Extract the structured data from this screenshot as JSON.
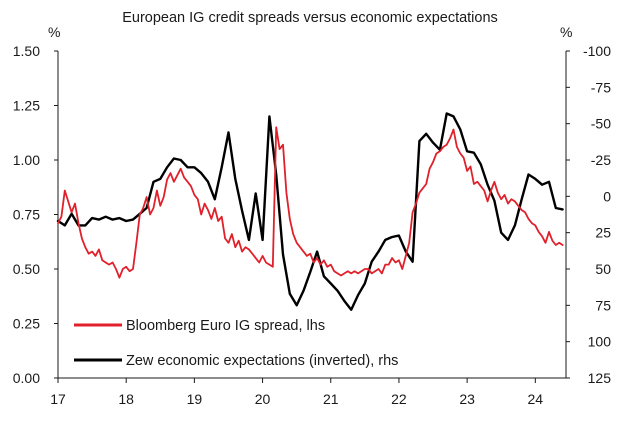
{
  "chart_data": {
    "type": "line",
    "title": "European IG credit spreads versus economic expectations",
    "left_axis": {
      "unit_label": "%",
      "range": [
        0,
        1.5
      ],
      "ticks": [
        "0.00",
        "0.25",
        "0.50",
        "0.75",
        "1.00",
        "1.25",
        "1.50"
      ],
      "tick_values": [
        0,
        0.25,
        0.5,
        0.75,
        1.0,
        1.25,
        1.5
      ]
    },
    "right_axis": {
      "unit_label": "%",
      "inverted": true,
      "range": [
        125,
        -100
      ],
      "ticks": [
        "125",
        "100",
        "75",
        "50",
        "25",
        "0",
        "-25",
        "-50",
        "-75",
        "-100"
      ],
      "tick_values": [
        125,
        100,
        75,
        50,
        25,
        0,
        -25,
        -50,
        -75,
        -100
      ]
    },
    "x_axis": {
      "range": [
        17,
        24.45
      ],
      "ticks": [
        "17",
        "18",
        "19",
        "20",
        "21",
        "22",
        "23",
        "24"
      ],
      "tick_values": [
        17,
        18,
        19,
        20,
        21,
        22,
        23,
        24
      ]
    },
    "grid": false,
    "legend_position": "bottom-left",
    "series": [
      {
        "name": "Bloomberg Euro IG spread, lhs",
        "axis": "left",
        "color": "#e0202a",
        "x": [
          17.0,
          17.05,
          17.1,
          17.15,
          17.2,
          17.25,
          17.3,
          17.35,
          17.4,
          17.45,
          17.5,
          17.55,
          17.6,
          17.65,
          17.7,
          17.75,
          17.8,
          17.85,
          17.9,
          17.95,
          18.0,
          18.05,
          18.1,
          18.15,
          18.2,
          18.25,
          18.3,
          18.35,
          18.4,
          18.45,
          18.5,
          18.55,
          18.6,
          18.65,
          18.7,
          18.75,
          18.8,
          18.85,
          18.9,
          18.95,
          19.0,
          19.05,
          19.1,
          19.15,
          19.2,
          19.25,
          19.3,
          19.35,
          19.4,
          19.45,
          19.5,
          19.55,
          19.6,
          19.65,
          19.7,
          19.75,
          19.8,
          19.85,
          19.9,
          19.95,
          20.0,
          20.05,
          20.1,
          20.15,
          20.2,
          20.25,
          20.3,
          20.35,
          20.4,
          20.45,
          20.5,
          20.55,
          20.6,
          20.65,
          20.7,
          20.75,
          20.8,
          20.85,
          20.9,
          20.95,
          21.0,
          21.05,
          21.1,
          21.15,
          21.2,
          21.25,
          21.3,
          21.35,
          21.4,
          21.45,
          21.5,
          21.55,
          21.6,
          21.65,
          21.7,
          21.75,
          21.8,
          21.85,
          21.9,
          21.95,
          22.0,
          22.05,
          22.1,
          22.15,
          22.2,
          22.25,
          22.3,
          22.35,
          22.4,
          22.45,
          22.5,
          22.55,
          22.6,
          22.65,
          22.7,
          22.75,
          22.8,
          22.85,
          22.9,
          22.95,
          23.0,
          23.05,
          23.1,
          23.15,
          23.2,
          23.25,
          23.3,
          23.35,
          23.4,
          23.45,
          23.5,
          23.55,
          23.6,
          23.65,
          23.7,
          23.75,
          23.8,
          23.85,
          23.9,
          23.95,
          24.0,
          24.05,
          24.1,
          24.15,
          24.2,
          24.25,
          24.3,
          24.35,
          24.4
        ],
        "values": [
          0.71,
          0.74,
          0.86,
          0.81,
          0.76,
          0.8,
          0.71,
          0.64,
          0.6,
          0.57,
          0.58,
          0.56,
          0.59,
          0.54,
          0.53,
          0.52,
          0.53,
          0.5,
          0.46,
          0.5,
          0.51,
          0.49,
          0.5,
          0.62,
          0.75,
          0.78,
          0.83,
          0.75,
          0.78,
          0.86,
          0.79,
          0.83,
          0.91,
          0.94,
          0.9,
          0.93,
          0.96,
          0.92,
          0.9,
          0.88,
          0.84,
          0.82,
          0.75,
          0.8,
          0.77,
          0.73,
          0.78,
          0.72,
          0.74,
          0.64,
          0.62,
          0.66,
          0.6,
          0.63,
          0.58,
          0.6,
          0.59,
          0.57,
          0.55,
          0.53,
          0.56,
          0.53,
          0.52,
          0.51,
          1.15,
          1.05,
          1.07,
          0.85,
          0.73,
          0.66,
          0.62,
          0.6,
          0.58,
          0.56,
          0.57,
          0.53,
          0.55,
          0.52,
          0.54,
          0.51,
          0.52,
          0.49,
          0.48,
          0.47,
          0.48,
          0.49,
          0.48,
          0.49,
          0.48,
          0.49,
          0.5,
          0.5,
          0.48,
          0.49,
          0.5,
          0.48,
          0.52,
          0.52,
          0.55,
          0.53,
          0.54,
          0.5,
          0.56,
          0.62,
          0.76,
          0.8,
          0.85,
          0.87,
          0.89,
          0.96,
          0.99,
          1.03,
          1.04,
          1.06,
          1.07,
          1.1,
          1.14,
          1.06,
          1.03,
          1.01,
          0.95,
          0.97,
          0.89,
          0.9,
          0.88,
          0.86,
          0.81,
          0.86,
          0.9,
          0.85,
          0.82,
          0.84,
          0.8,
          0.82,
          0.81,
          0.79,
          0.77,
          0.76,
          0.73,
          0.71,
          0.7,
          0.67,
          0.65,
          0.62,
          0.67,
          0.63,
          0.61,
          0.62,
          0.61
        ]
      },
      {
        "name": "Zew economic expectations (inverted), rhs",
        "axis": "right",
        "color": "#000000",
        "x": [
          17.0,
          17.1,
          17.2,
          17.3,
          17.4,
          17.5,
          17.6,
          17.7,
          17.8,
          17.9,
          18.0,
          18.1,
          18.2,
          18.3,
          18.4,
          18.5,
          18.6,
          18.7,
          18.8,
          18.9,
          19.0,
          19.1,
          19.2,
          19.3,
          19.4,
          19.5,
          19.6,
          19.7,
          19.8,
          19.9,
          20.0,
          20.1,
          20.2,
          20.3,
          20.4,
          20.5,
          20.6,
          20.7,
          20.8,
          20.9,
          21.0,
          21.1,
          21.2,
          21.3,
          21.4,
          21.5,
          21.6,
          21.7,
          21.8,
          21.9,
          22.0,
          22.1,
          22.2,
          22.3,
          22.4,
          22.5,
          22.6,
          22.7,
          22.8,
          22.9,
          23.0,
          23.1,
          23.2,
          23.3,
          23.4,
          23.5,
          23.6,
          23.7,
          23.8,
          23.9,
          24.0,
          24.1,
          24.2,
          24.3,
          24.4
        ],
        "values": [
          17,
          20,
          12,
          20,
          20,
          15,
          16,
          14,
          16,
          15,
          17,
          16,
          12,
          8,
          -10,
          -12,
          -20,
          -26,
          -25,
          -20,
          -20,
          -16,
          -10,
          2,
          -20,
          -44,
          -12,
          10,
          30,
          -2,
          30,
          -55,
          -15,
          40,
          67,
          75,
          65,
          52,
          38,
          55,
          60,
          65,
          72,
          78,
          68,
          60,
          45,
          38,
          30,
          28,
          27,
          38,
          45,
          -38,
          -43,
          -37,
          -32,
          -57,
          -55,
          -46,
          -31,
          -30,
          -22,
          -8,
          3,
          25,
          30,
          20,
          2,
          -15,
          -12,
          -8,
          -10,
          8,
          9
        ]
      }
    ]
  }
}
